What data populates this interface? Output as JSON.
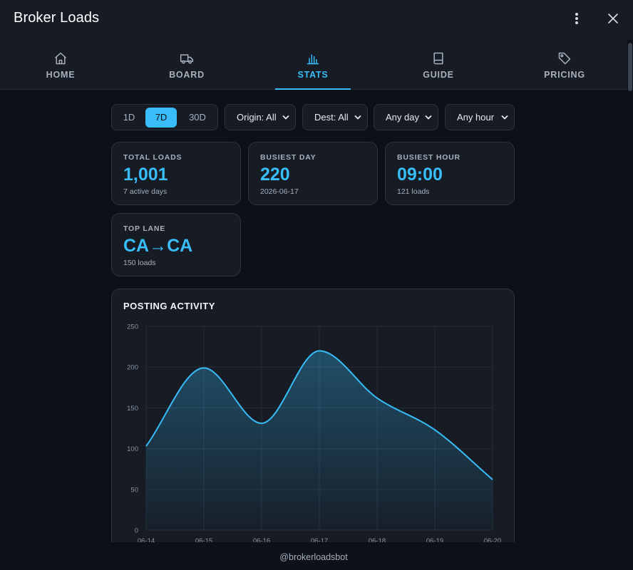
{
  "app": {
    "title": "Broker Loads",
    "menu_icon": "kebab-menu-icon",
    "close_icon": "close-icon"
  },
  "tabs": [
    {
      "label": "HOME",
      "icon": "home-icon",
      "active": false
    },
    {
      "label": "BOARD",
      "icon": "truck-icon",
      "active": false
    },
    {
      "label": "STATS",
      "icon": "bar-chart-icon",
      "active": true
    },
    {
      "label": "GUIDE",
      "icon": "book-icon",
      "active": false
    },
    {
      "label": "PRICING",
      "icon": "tag-icon",
      "active": false
    }
  ],
  "filters": {
    "range": {
      "options": [
        "1D",
        "7D",
        "30D"
      ],
      "selected": "7D"
    },
    "origin": "Origin: All",
    "dest": "Dest: All",
    "day": "Any day",
    "hour": "Any hour"
  },
  "cards": [
    {
      "label": "TOTAL LOADS",
      "value": "1,001",
      "sub": "7 active days"
    },
    {
      "label": "BUSIEST DAY",
      "value": "220",
      "sub": "2026-06-17"
    },
    {
      "label": "BUSIEST HOUR",
      "value": "09:00",
      "sub": "121 loads"
    },
    {
      "label": "TOP LANE",
      "value": "CA→CA",
      "sub": "150 loads"
    }
  ],
  "chart": {
    "title": "POSTING ACTIVITY"
  },
  "chart_data": {
    "type": "area",
    "title": "POSTING ACTIVITY",
    "x": [
      "06-14",
      "06-15",
      "06-16",
      "06-17",
      "06-18",
      "06-19",
      "06-20"
    ],
    "series": [
      {
        "values": [
          103,
          199,
          131,
          220,
          162,
          123,
          62
        ]
      }
    ],
    "ylim": [
      0,
      250
    ],
    "yticks": [
      0,
      50,
      100,
      150,
      200,
      250
    ],
    "grid": true,
    "smooth": true,
    "line_color": "#38bdf8"
  },
  "footer": {
    "text": "@brokerloadsbot"
  },
  "colors": {
    "accent": "#38bdf8",
    "background": "#0c1018",
    "surface": "#161b24",
    "border": "#2b3240",
    "muted": "#a7b0bf"
  }
}
